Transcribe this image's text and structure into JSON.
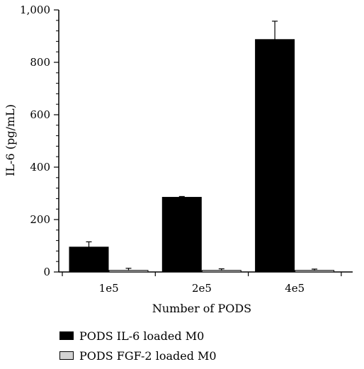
{
  "chart_data": {
    "type": "bar",
    "title": "",
    "xlabel": "Number of PODS",
    "ylabel": "IL-6 (pg/mL)",
    "categories": [
      "1e5",
      "2e5",
      "4e5"
    ],
    "ylim": [
      0,
      1000
    ],
    "yticks": [
      0,
      200,
      400,
      600,
      800,
      1000
    ],
    "ytick_labels": [
      "0",
      "200",
      "400",
      "600",
      "800",
      "1,000"
    ],
    "series": [
      {
        "name": "PODS IL-6 loaded M0",
        "color": "#000000",
        "values": [
          95,
          285,
          887
        ],
        "errors": [
          20,
          3,
          70
        ]
      },
      {
        "name": "PODS FGF-2 loaded M0",
        "color": "#d3d3d3",
        "values": [
          6,
          6,
          6
        ],
        "errors": [
          8,
          6,
          5
        ]
      }
    ],
    "grid": false,
    "legend_position": "bottom-left"
  }
}
